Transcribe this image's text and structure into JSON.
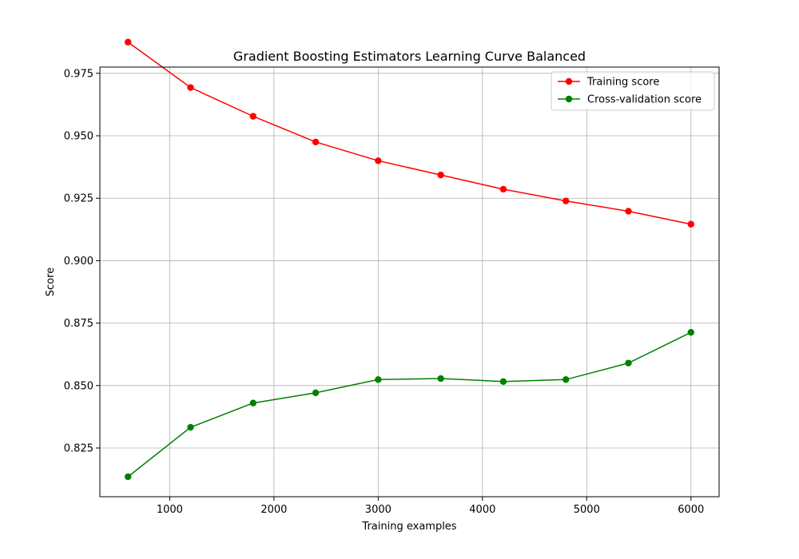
{
  "chart_data": {
    "type": "line",
    "title": "Gradient Boosting Estimators Learning Curve Balanced",
    "xlabel": "Training examples",
    "ylabel": "Score",
    "xlim": [
      330,
      6270
    ],
    "ylim": [
      0.8055,
      0.9775
    ],
    "xticks": [
      1000,
      2000,
      3000,
      4000,
      5000,
      6000
    ],
    "xtick_labels": [
      "1000",
      "2000",
      "3000",
      "4000",
      "5000",
      "6000"
    ],
    "yticks": [
      0.825,
      0.85,
      0.875,
      0.9,
      0.925,
      0.95,
      0.975
    ],
    "ytick_labels": [
      "0.825",
      "0.850",
      "0.875",
      "0.900",
      "0.925",
      "0.950",
      "0.975"
    ],
    "grid": true,
    "legend_position": "top-right",
    "x": [
      600,
      1200,
      1800,
      2400,
      3000,
      3600,
      4200,
      4800,
      5400,
      6000
    ],
    "series": [
      {
        "name": "Training score",
        "color": "#ff0000",
        "marker": "circle",
        "values": [
          0.9875,
          0.9693,
          0.9578,
          0.9475,
          0.94,
          0.9343,
          0.9286,
          0.9239,
          0.9198,
          0.9146
        ]
      },
      {
        "name": "Cross-validation score",
        "color": "#008000",
        "marker": "circle",
        "values": [
          0.8135,
          0.8333,
          0.843,
          0.8471,
          0.8524,
          0.8528,
          0.8516,
          0.8524,
          0.859,
          0.8713
        ]
      }
    ]
  }
}
